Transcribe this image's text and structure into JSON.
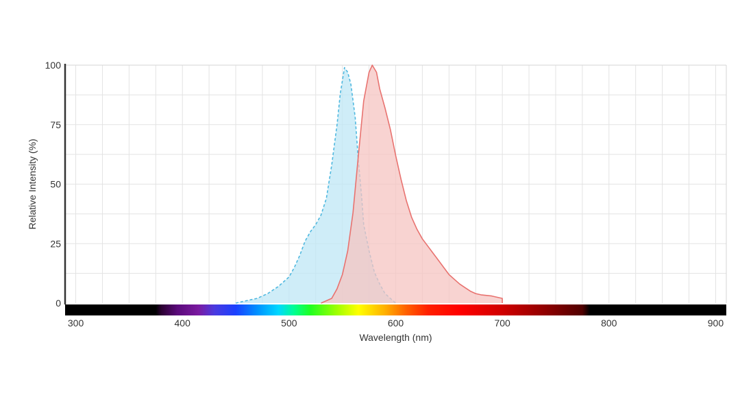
{
  "chart_data": {
    "type": "area",
    "xlabel": "Wavelength (nm)",
    "ylabel": "Relative Intensity (%)",
    "xlim": [
      290,
      910
    ],
    "ylim": [
      0,
      100
    ],
    "x_ticks": [
      300,
      400,
      500,
      600,
      700,
      800,
      900
    ],
    "y_ticks": [
      0,
      25,
      50,
      75,
      100
    ],
    "grid": true,
    "spectrum_bar": true,
    "series": [
      {
        "style": "dashed",
        "stroke": "#4fb8df",
        "fill": "#bfe7f6",
        "points": [
          [
            450,
            0
          ],
          [
            460,
            1
          ],
          [
            470,
            2
          ],
          [
            480,
            4
          ],
          [
            490,
            7
          ],
          [
            500,
            11
          ],
          [
            505,
            15
          ],
          [
            510,
            20
          ],
          [
            515,
            26
          ],
          [
            520,
            30
          ],
          [
            525,
            33
          ],
          [
            530,
            37
          ],
          [
            535,
            44
          ],
          [
            540,
            58
          ],
          [
            545,
            75
          ],
          [
            548,
            88
          ],
          [
            552,
            99
          ],
          [
            555,
            97
          ],
          [
            558,
            92
          ],
          [
            562,
            78
          ],
          [
            565,
            60
          ],
          [
            568,
            45
          ],
          [
            570,
            33
          ],
          [
            575,
            22
          ],
          [
            580,
            13
          ],
          [
            585,
            8
          ],
          [
            590,
            4
          ],
          [
            595,
            2
          ],
          [
            600,
            0
          ]
        ]
      },
      {
        "style": "solid",
        "stroke": "#e8726f",
        "fill": "#f6c4c1",
        "points": [
          [
            530,
            0
          ],
          [
            540,
            2
          ],
          [
            545,
            6
          ],
          [
            550,
            12
          ],
          [
            555,
            22
          ],
          [
            560,
            38
          ],
          [
            565,
            62
          ],
          [
            570,
            85
          ],
          [
            575,
            97
          ],
          [
            578,
            100
          ],
          [
            582,
            97
          ],
          [
            585,
            90
          ],
          [
            590,
            82
          ],
          [
            595,
            73
          ],
          [
            600,
            62
          ],
          [
            605,
            52
          ],
          [
            610,
            43
          ],
          [
            615,
            36
          ],
          [
            620,
            31
          ],
          [
            625,
            27
          ],
          [
            630,
            24
          ],
          [
            635,
            21
          ],
          [
            640,
            18
          ],
          [
            645,
            15
          ],
          [
            650,
            12
          ],
          [
            655,
            10
          ],
          [
            660,
            8
          ],
          [
            665,
            6.5
          ],
          [
            670,
            5
          ],
          [
            675,
            4
          ],
          [
            680,
            3.5
          ],
          [
            690,
            3
          ],
          [
            700,
            2
          ],
          [
            700,
            0
          ]
        ]
      }
    ]
  }
}
